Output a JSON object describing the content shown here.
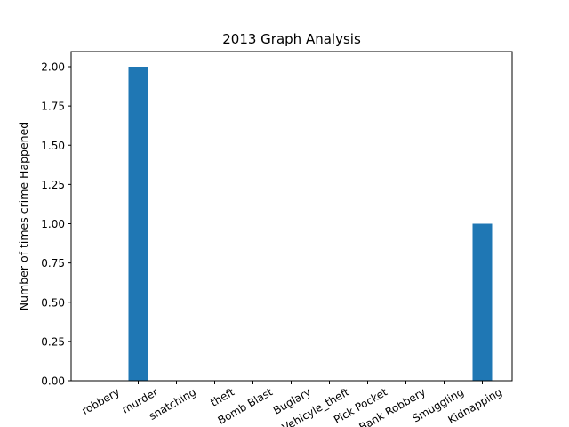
{
  "chart_data": {
    "type": "bar",
    "title": "2013 Graph Analysis",
    "xlabel": "",
    "ylabel": "Number of times crime Happened",
    "categories": [
      "robbery",
      "murder",
      "snatching",
      "theft",
      "Bomb Blast",
      "Buglary",
      "Vehicyle_theft",
      "Pick Pocket",
      "Bank Robbery",
      "Smuggling",
      "Kidnapping"
    ],
    "values": [
      0,
      2,
      0,
      0,
      0,
      0,
      0,
      0,
      0,
      0,
      1
    ],
    "ylim": [
      0,
      2.0
    ],
    "yticks": [
      "0.00",
      "0.25",
      "0.50",
      "0.75",
      "1.00",
      "1.25",
      "1.50",
      "1.75",
      "2.00"
    ],
    "grid": false,
    "bar_color": "#1f77b4"
  }
}
